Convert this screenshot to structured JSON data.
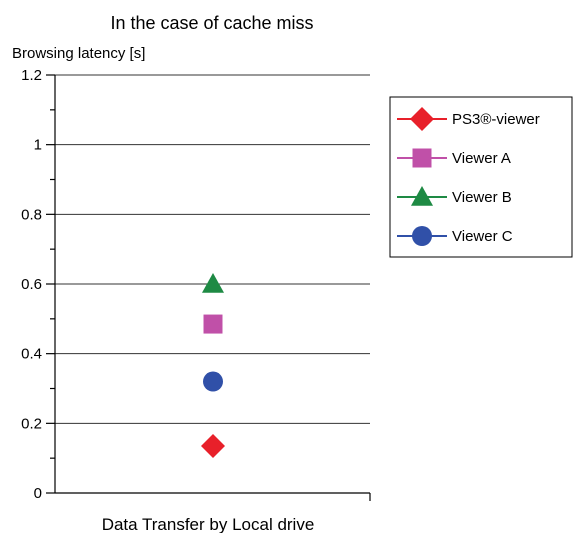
{
  "chart_data": {
    "type": "scatter",
    "title": "In the case of cache miss",
    "xlabel": "",
    "ylabel": "Browsing latency [s]",
    "categories": [
      "Data Transfer by Local drive"
    ],
    "ylim": [
      0,
      1.2
    ],
    "y_ticks": [
      "0",
      "0.2",
      "0.4",
      "0.6",
      "0.8",
      "1",
      "1.2"
    ],
    "grid": true,
    "legend_position": "right",
    "series": [
      {
        "name": "PS3®-viewer",
        "values": [
          0.135
        ],
        "color": "#e8202a",
        "marker": "diamond"
      },
      {
        "name": "Viewer A",
        "values": [
          0.485
        ],
        "color": "#c050a8",
        "marker": "square"
      },
      {
        "name": "Viewer B",
        "values": [
          0.6
        ],
        "color": "#1e8a44",
        "marker": "triangle"
      },
      {
        "name": "Viewer C",
        "values": [
          0.32
        ],
        "color": "#3050a8",
        "marker": "circle"
      }
    ]
  }
}
